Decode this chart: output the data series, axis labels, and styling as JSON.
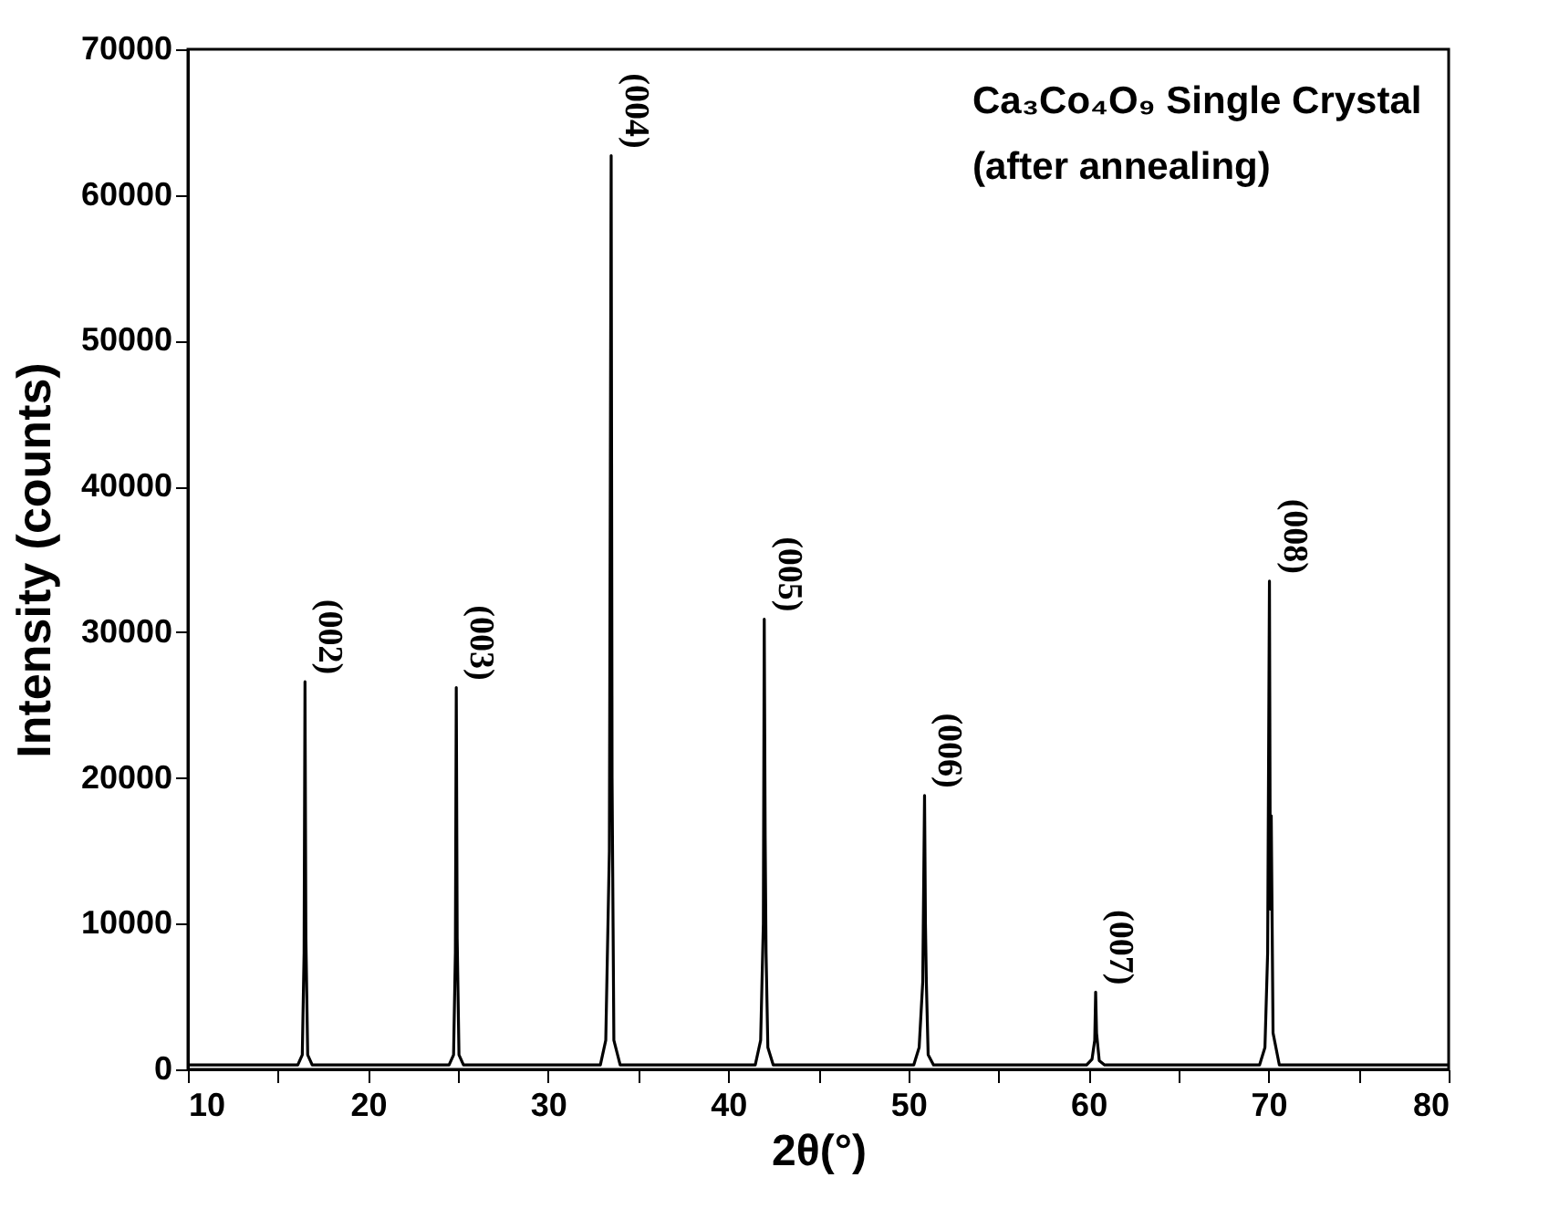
{
  "chart_data": {
    "type": "line",
    "xlabel": "2θ(°)",
    "ylabel": "Intensity (counts)",
    "xlim": [
      10,
      80
    ],
    "ylim": [
      0,
      70000
    ],
    "xticks": [
      10,
      {
        "value": 15,
        "label": null
      },
      20,
      {
        "value": 25,
        "label": null
      },
      30,
      {
        "value": 35,
        "label": null
      },
      40,
      {
        "value": 45,
        "label": null
      },
      50,
      {
        "value": 55,
        "label": null
      },
      60,
      {
        "value": 65,
        "label": null
      },
      70,
      {
        "value": 75,
        "label": null
      },
      80
    ],
    "yticks": [
      0,
      10000,
      20000,
      30000,
      40000,
      50000,
      60000,
      70000
    ],
    "grid": false,
    "marker": "none",
    "line_style": "solid",
    "series": [
      {
        "color": "#000000",
        "x": [
          10,
          16.1,
          16.35,
          16.45,
          16.5,
          16.55,
          16.65,
          16.9,
          24.5,
          24.75,
          24.85,
          24.9,
          24.95,
          25.05,
          25.3,
          32.9,
          33.2,
          33.4,
          33.5,
          33.55,
          33.65,
          34.0,
          41.5,
          41.8,
          41.95,
          42.0,
          42.05,
          42.1,
          42.2,
          42.5,
          50.3,
          50.6,
          50.8,
          50.9,
          50.95,
          51.0,
          51.1,
          51.4,
          59.9,
          60.2,
          60.35,
          60.4,
          60.45,
          60.6,
          60.9,
          69.5,
          69.8,
          69.95,
          70.05,
          70.1,
          70.15,
          70.25,
          70.6,
          80
        ],
        "values": [
          300,
          300,
          1000,
          8000,
          26600,
          9000,
          1000,
          300,
          300,
          1000,
          8000,
          26200,
          9000,
          1000,
          300,
          300,
          2000,
          15000,
          62700,
          20000,
          2000,
          300,
          300,
          2000,
          10000,
          30900,
          16000,
          8000,
          1500,
          300,
          300,
          1500,
          6000,
          18800,
          10000,
          6000,
          1000,
          300,
          300,
          700,
          2000,
          5300,
          2500,
          600,
          300,
          300,
          1500,
          8000,
          33500,
          11000,
          17400,
          2500,
          300,
          300
        ]
      }
    ],
    "annotations": [
      {
        "text": "(002)",
        "x": 16.5,
        "y": 26600
      },
      {
        "text": "(003)",
        "x": 24.9,
        "y": 26200
      },
      {
        "text": "(004)",
        "x": 33.5,
        "y": 62700
      },
      {
        "text": "(005)",
        "x": 42.0,
        "y": 30900
      },
      {
        "text": "(006)",
        "x": 50.9,
        "y": 18800
      },
      {
        "text": "(007)",
        "x": 60.4,
        "y": 5300
      },
      {
        "text": "(008)",
        "x": 70.05,
        "y": 33500
      },
      "Ca₃Co₄O₉ Single Crystal",
      "(after annealing)"
    ]
  }
}
